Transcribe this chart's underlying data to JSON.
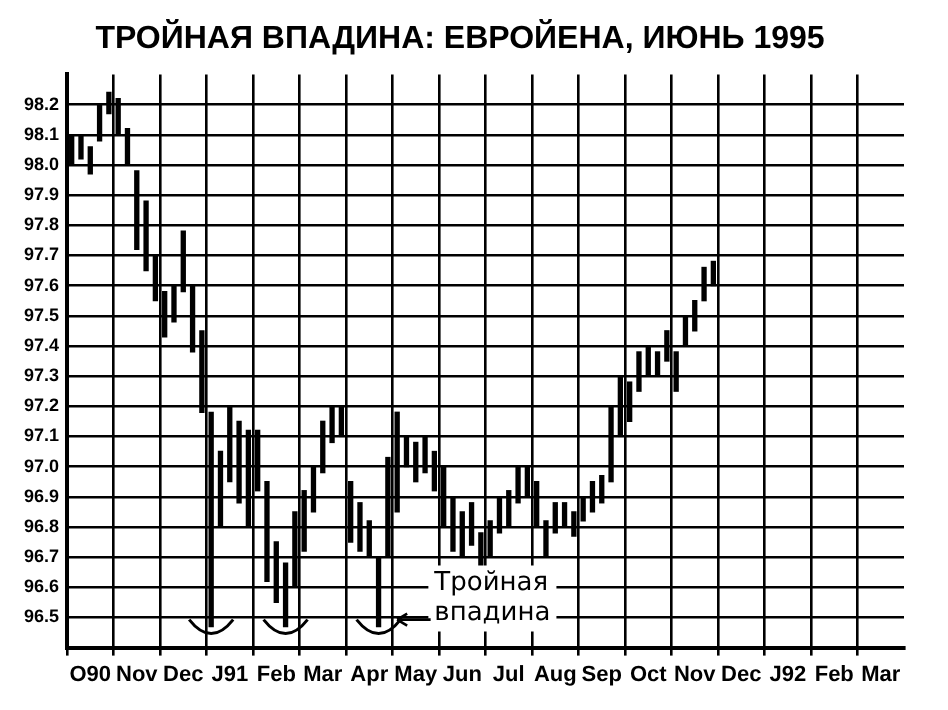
{
  "chart_data": {
    "type": "bar",
    "title": "ТРОЙНАЯ ВПАДИНА: ЕВРОЙЕНА, ИЮНЬ 1995",
    "categories": [
      null,
      null,
      "O90",
      null,
      null,
      null,
      null,
      "Nov",
      null,
      null,
      null,
      null,
      "Dec",
      null,
      null,
      null,
      null,
      "J91",
      null,
      null,
      null,
      null,
      "Feb",
      null,
      null,
      null,
      null,
      "Mar",
      null,
      null,
      null,
      null,
      "Apr",
      null,
      null,
      null,
      null,
      "May",
      null,
      null,
      null,
      null,
      "Jun",
      null,
      null,
      null,
      null,
      "Jul",
      null,
      null,
      null,
      null,
      "Aug",
      null,
      null,
      null,
      null,
      "Sep",
      null,
      null,
      null,
      null,
      "Oct",
      null,
      null,
      null,
      null,
      "Nov",
      null,
      null,
      null,
      null,
      "Dec",
      null,
      null,
      null,
      null,
      "J92",
      null,
      null,
      null,
      null,
      "Feb",
      null,
      null,
      null,
      null,
      "Mar",
      null,
      null
    ],
    "base": [
      98.0,
      98.02,
      97.97,
      98.08,
      98.17,
      98.1,
      98.0,
      97.72,
      97.65,
      97.55,
      97.43,
      97.48,
      97.58,
      97.38,
      97.18,
      96.47,
      96.8,
      96.95,
      96.88,
      96.8,
      96.92,
      96.62,
      96.55,
      96.47,
      96.6,
      96.72,
      96.85,
      96.98,
      97.08,
      97.1,
      96.75,
      96.72,
      96.7,
      96.47,
      96.7,
      96.85,
      97.0,
      96.95,
      96.98,
      96.92,
      96.8,
      96.72,
      96.7,
      96.74,
      96.65,
      96.7,
      96.78,
      96.8,
      96.88,
      96.9,
      96.8,
      96.7,
      96.78,
      96.8,
      96.77,
      96.82,
      96.85,
      96.88,
      96.95,
      97.1,
      97.15,
      97.25,
      97.3,
      97.3,
      97.35,
      97.25,
      97.4,
      97.45,
      97.55,
      97.6,
      null,
      null,
      null,
      null,
      null,
      null,
      null,
      null,
      null,
      null,
      null,
      null,
      null,
      null,
      null,
      null,
      null,
      null,
      null,
      null
    ],
    "values": [
      0.1,
      0.08,
      0.09,
      0.12,
      0.07,
      0.12,
      0.12,
      0.26,
      0.23,
      0.15,
      0.15,
      0.12,
      0.2,
      0.22,
      0.27,
      0.71,
      0.25,
      0.25,
      0.27,
      0.32,
      0.2,
      0.33,
      0.2,
      0.21,
      0.25,
      0.2,
      0.15,
      0.17,
      0.12,
      0.1,
      0.2,
      0.16,
      0.12,
      0.23,
      0.33,
      0.33,
      0.1,
      0.13,
      0.12,
      0.13,
      0.2,
      0.18,
      0.15,
      0.14,
      0.13,
      0.12,
      0.12,
      0.12,
      0.12,
      0.1,
      0.15,
      0.12,
      0.1,
      0.08,
      0.08,
      0.08,
      0.1,
      0.09,
      0.25,
      0.2,
      0.13,
      0.13,
      0.1,
      0.08,
      0.1,
      0.13,
      0.1,
      0.1,
      0.11,
      0.08,
      null,
      null,
      null,
      null,
      null,
      null,
      null,
      null,
      null,
      null,
      null,
      null,
      null,
      null,
      null,
      null,
      null,
      null,
      null,
      null
    ],
    "color": "#000000",
    "ylim": [
      96.4,
      98.3
    ],
    "yticks": [
      96.5,
      96.6,
      96.7,
      96.8,
      96.9,
      {
        "value": 97,
        "label": "97.0"
      },
      97.1,
      97.2,
      97.3,
      97.4,
      97.5,
      97.6,
      97.7,
      97.8,
      97.9,
      {
        "value": 98,
        "label": "98.0"
      },
      98.1,
      98.2
    ],
    "grid": true,
    "annotations": [
      "Тройная впадина"
    ]
  }
}
